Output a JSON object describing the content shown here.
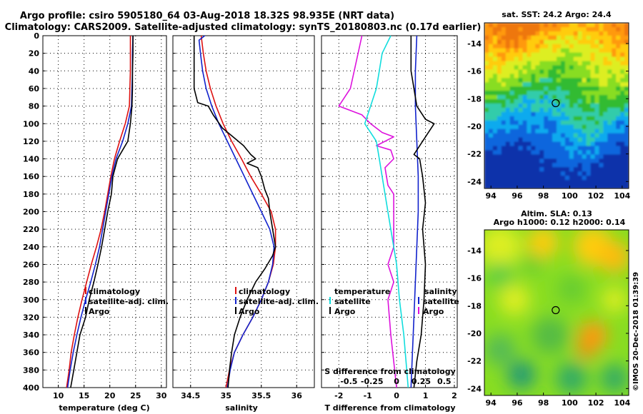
{
  "title_line1": "Argo profile: csiro 5905180_64 03-Aug-2018 18.32S 98.935E (NRT data)",
  "title_line2": "Climatology: CARS2009. Satellite-adjusted climatology: synTS_20180803.nc (0.17d earlier)",
  "colors": {
    "climatology": "#dd1111",
    "satellite": "#1122cc",
    "argo": "#000000",
    "s_diff": "#dd11dd",
    "t_diff": "#11dddd",
    "marker": "#000000"
  },
  "credit": "©IMOS 20-Dec-2018 01:39:39",
  "chart_data": [
    {
      "type": "line",
      "id": "temperature",
      "xlabel": "temperature (deg C)",
      "xlim": [
        7,
        31
      ],
      "xticks": [
        "10",
        "15",
        "20",
        "25",
        "30"
      ],
      "xtick_values": [
        10,
        15,
        20,
        25,
        30
      ],
      "ylim": [
        0,
        400
      ],
      "yticks": [
        "0",
        "20",
        "40",
        "60",
        "80",
        "100",
        "120",
        "140",
        "160",
        "180",
        "200",
        "220",
        "240",
        "260",
        "280",
        "300",
        "320",
        "340",
        "360",
        "380",
        "400"
      ],
      "legend": [
        "climatology",
        "satellite-adj. clim.",
        "Argo"
      ],
      "series": [
        {
          "name": "climatology",
          "color": "#dd1111",
          "points": [
            [
              24.0,
              0
            ],
            [
              24.0,
              20
            ],
            [
              24.0,
              40
            ],
            [
              23.9,
              60
            ],
            [
              23.8,
              80
            ],
            [
              23.0,
              100
            ],
            [
              21.9,
              120
            ],
            [
              20.9,
              140
            ],
            [
              20.2,
              160
            ],
            [
              19.6,
              180
            ],
            [
              19.0,
              200
            ],
            [
              18.3,
              220
            ],
            [
              17.4,
              240
            ],
            [
              16.4,
              260
            ],
            [
              15.5,
              280
            ],
            [
              14.6,
              300
            ],
            [
              13.8,
              320
            ],
            [
              13.1,
              340
            ],
            [
              12.5,
              360
            ],
            [
              12.1,
              380
            ],
            [
              11.6,
              400
            ]
          ]
        },
        {
          "name": "satellite-adj. clim.",
          "color": "#1122cc",
          "points": [
            [
              24.5,
              0
            ],
            [
              24.4,
              20
            ],
            [
              24.4,
              40
            ],
            [
              24.3,
              60
            ],
            [
              24.2,
              80
            ],
            [
              23.5,
              100
            ],
            [
              22.5,
              120
            ],
            [
              21.2,
              140
            ],
            [
              20.4,
              160
            ],
            [
              19.8,
              180
            ],
            [
              19.2,
              200
            ],
            [
              18.6,
              220
            ],
            [
              18.0,
              240
            ],
            [
              17.2,
              260
            ],
            [
              16.3,
              280
            ],
            [
              15.3,
              300
            ],
            [
              14.4,
              320
            ],
            [
              13.6,
              340
            ],
            [
              12.9,
              360
            ],
            [
              12.3,
              380
            ],
            [
              11.8,
              400
            ]
          ]
        },
        {
          "name": "Argo",
          "color": "#000000",
          "points": [
            [
              24.5,
              0
            ],
            [
              24.5,
              20
            ],
            [
              24.4,
              40
            ],
            [
              24.4,
              60
            ],
            [
              24.3,
              80
            ],
            [
              24.0,
              100
            ],
            [
              23.5,
              120
            ],
            [
              22.5,
              130
            ],
            [
              21.5,
              140
            ],
            [
              20.6,
              160
            ],
            [
              20.3,
              180
            ],
            [
              19.6,
              200
            ],
            [
              19.0,
              220
            ],
            [
              18.4,
              240
            ],
            [
              17.7,
              260
            ],
            [
              16.9,
              280
            ],
            [
              16.0,
              300
            ],
            [
              15.3,
              320
            ],
            [
              14.2,
              340
            ],
            [
              13.6,
              360
            ],
            [
              13.0,
              380
            ],
            [
              12.4,
              400
            ]
          ]
        }
      ]
    },
    {
      "type": "line",
      "id": "salinity",
      "xlabel": "salinity",
      "xlim": [
        34.25,
        36.25
      ],
      "xticks": [
        "34.5",
        "35",
        "35.5",
        "36"
      ],
      "xtick_values": [
        34.5,
        35,
        35.5,
        36
      ],
      "ylim": [
        0,
        400
      ],
      "legend": [
        "climatology",
        "satellite-adj. clim.",
        "Argo"
      ],
      "series": [
        {
          "name": "climatology",
          "color": "#dd1111",
          "points": [
            [
              34.65,
              0
            ],
            [
              34.68,
              20
            ],
            [
              34.72,
              40
            ],
            [
              34.78,
              60
            ],
            [
              34.86,
              80
            ],
            [
              34.96,
              100
            ],
            [
              35.08,
              120
            ],
            [
              35.22,
              140
            ],
            [
              35.35,
              160
            ],
            [
              35.5,
              180
            ],
            [
              35.64,
              200
            ],
            [
              35.7,
              220
            ],
            [
              35.7,
              240
            ],
            [
              35.67,
              260
            ],
            [
              35.6,
              280
            ],
            [
              35.5,
              300
            ],
            [
              35.38,
              320
            ],
            [
              35.24,
              340
            ],
            [
              35.12,
              360
            ],
            [
              35.05,
              380
            ],
            [
              35.0,
              400
            ]
          ]
        },
        {
          "name": "satellite-adj. clim.",
          "color": "#1122cc",
          "points": [
            [
              34.7,
              0
            ],
            [
              34.62,
              5
            ],
            [
              34.64,
              20
            ],
            [
              34.67,
              40
            ],
            [
              34.72,
              60
            ],
            [
              34.8,
              80
            ],
            [
              34.9,
              100
            ],
            [
              35.02,
              120
            ],
            [
              35.14,
              140
            ],
            [
              35.26,
              160
            ],
            [
              35.38,
              180
            ],
            [
              35.5,
              200
            ],
            [
              35.62,
              220
            ],
            [
              35.68,
              240
            ],
            [
              35.66,
              260
            ],
            [
              35.6,
              280
            ],
            [
              35.5,
              300
            ],
            [
              35.38,
              320
            ],
            [
              35.24,
              340
            ],
            [
              35.12,
              360
            ],
            [
              35.06,
              380
            ],
            [
              35.02,
              400
            ]
          ]
        },
        {
          "name": "Argo",
          "color": "#000000",
          "points": [
            [
              34.55,
              0
            ],
            [
              34.55,
              20
            ],
            [
              34.55,
              40
            ],
            [
              34.55,
              60
            ],
            [
              34.6,
              76
            ],
            [
              34.75,
              80
            ],
            [
              34.82,
              90
            ],
            [
              34.95,
              105
            ],
            [
              35.1,
              115
            ],
            [
              35.25,
              125
            ],
            [
              35.35,
              135
            ],
            [
              35.42,
              140
            ],
            [
              35.3,
              145
            ],
            [
              35.45,
              150
            ],
            [
              35.5,
              160
            ],
            [
              35.55,
              175
            ],
            [
              35.6,
              185
            ],
            [
              35.62,
              200
            ],
            [
              35.66,
              220
            ],
            [
              35.7,
              240
            ],
            [
              35.66,
              250
            ],
            [
              35.55,
              265
            ],
            [
              35.42,
              280
            ],
            [
              35.3,
              300
            ],
            [
              35.2,
              320
            ],
            [
              35.12,
              340
            ],
            [
              35.08,
              360
            ],
            [
              35.05,
              380
            ],
            [
              35.03,
              400
            ]
          ]
        }
      ]
    },
    {
      "type": "line",
      "id": "differences",
      "xlabel": "T difference from climatology",
      "xlim": [
        -2.6,
        2.1
      ],
      "xticks": [
        "-2",
        "-1",
        "0",
        "1",
        "2"
      ],
      "xtick_values": [
        -2,
        -1,
        0,
        1,
        2
      ],
      "x2label": "S difference from climatology",
      "x2ticks": [
        "-0.5",
        "-0.25",
        "0",
        "0.25",
        "0.5"
      ],
      "ylim": [
        0,
        400
      ],
      "legend_temperature": {
        "header": "temperature",
        "items": [
          "satellite",
          "Argo"
        ]
      },
      "legend_salinity": {
        "header": "salinity",
        "items": [
          "satellite",
          "Argo"
        ]
      },
      "series": [
        {
          "name": "S Argo-clim",
          "color": "#dd11dd",
          "points": [
            [
              -1.2,
              0
            ],
            [
              -1.4,
              30
            ],
            [
              -1.6,
              60
            ],
            [
              -2.0,
              80
            ],
            [
              -1.2,
              90
            ],
            [
              -0.9,
              100
            ],
            [
              -0.5,
              110
            ],
            [
              -0.1,
              115
            ],
            [
              -0.7,
              125
            ],
            [
              -0.2,
              130
            ],
            [
              -0.1,
              140
            ],
            [
              -0.4,
              150
            ],
            [
              -0.3,
              170
            ],
            [
              -0.1,
              180
            ],
            [
              -0.1,
              220
            ],
            [
              -0.1,
              240
            ],
            [
              -0.3,
              260
            ],
            [
              -0.1,
              280
            ],
            [
              -0.3,
              300
            ],
            [
              -0.2,
              340
            ],
            [
              0.0,
              400
            ]
          ]
        },
        {
          "name": "T satellite-clim",
          "color": "#11dddd",
          "points": [
            [
              -0.2,
              0
            ],
            [
              -0.5,
              20
            ],
            [
              -0.6,
              40
            ],
            [
              -0.7,
              60
            ],
            [
              -0.9,
              80
            ],
            [
              -1.1,
              100
            ],
            [
              -0.7,
              120
            ],
            [
              -0.6,
              140
            ],
            [
              -0.5,
              160
            ],
            [
              -0.4,
              180
            ],
            [
              -0.2,
              220
            ],
            [
              0.0,
              260
            ],
            [
              0.1,
              300
            ],
            [
              0.25,
              340
            ],
            [
              0.35,
              380
            ],
            [
              0.4,
              400
            ]
          ]
        },
        {
          "name": "S satellite-clim",
          "color": "#1122cc",
          "points": [
            [
              0.7,
              0
            ],
            [
              0.65,
              40
            ],
            [
              0.65,
              80
            ],
            [
              0.7,
              120
            ],
            [
              0.75,
              160
            ],
            [
              0.75,
              200
            ],
            [
              0.7,
              240
            ],
            [
              0.65,
              280
            ],
            [
              0.6,
              320
            ],
            [
              0.55,
              360
            ],
            [
              0.5,
              400
            ]
          ]
        },
        {
          "name": "T Argo-clim",
          "color": "#000000",
          "points": [
            [
              0.5,
              0
            ],
            [
              0.5,
              20
            ],
            [
              0.5,
              40
            ],
            [
              0.6,
              60
            ],
            [
              0.7,
              80
            ],
            [
              1.0,
              95
            ],
            [
              1.3,
              100
            ],
            [
              1.1,
              110
            ],
            [
              0.9,
              120
            ],
            [
              0.6,
              135
            ],
            [
              0.8,
              140
            ],
            [
              0.9,
              160
            ],
            [
              1.0,
              190
            ],
            [
              0.9,
              220
            ],
            [
              1.0,
              260
            ],
            [
              0.95,
              300
            ],
            [
              0.85,
              340
            ],
            [
              0.7,
              370
            ],
            [
              0.6,
              400
            ]
          ]
        }
      ]
    },
    {
      "type": "heatmap",
      "id": "sst_map",
      "title": "sat. SST: 24.2 Argo: 24.4",
      "xlim": [
        93.5,
        104.5
      ],
      "ylim": [
        -24.5,
        -12.5
      ],
      "xticks": [
        "94",
        "96",
        "98",
        "100",
        "102",
        "104"
      ],
      "yticks": [
        "-14",
        "-16",
        "-18",
        "-20",
        "-22",
        "-24"
      ],
      "marker": {
        "lon": 98.935,
        "lat": -18.32
      }
    },
    {
      "type": "heatmap",
      "id": "sla_map",
      "title": "Altim. SLA: 0.13",
      "subtitle": "Argo h1000: 0.12 h2000: 0.14",
      "xlim": [
        93.5,
        104.5
      ],
      "ylim": [
        -24.5,
        -12.5
      ],
      "xticks": [
        "94",
        "96",
        "98",
        "100",
        "102",
        "104"
      ],
      "yticks": [
        "-14",
        "-16",
        "-18",
        "-20",
        "-22",
        "-24"
      ],
      "marker": {
        "lon": 98.935,
        "lat": -18.32
      }
    }
  ]
}
